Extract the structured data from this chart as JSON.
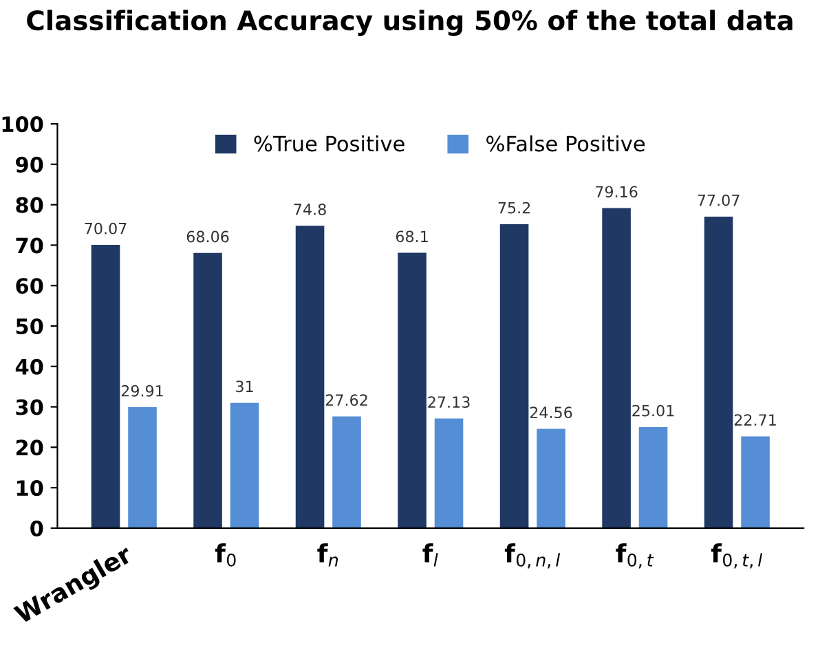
{
  "chart_data": {
    "type": "bar",
    "title": "Classification Accuracy using 50% of the total data",
    "categories": [
      "Wrangler",
      "f$_{0}$",
      "f$_{n}$",
      "f$_{l}$",
      "f$_{0,n,l}$",
      "f$_{0,t}$",
      "f$_{0,t,l}$"
    ],
    "series": [
      {
        "name": "%True Positive",
        "color": "#1f3864",
        "values": [
          70.07,
          68.06,
          74.8,
          68.1,
          75.2,
          79.16,
          77.07
        ]
      },
      {
        "name": "%False Positive",
        "color": "#558ed5",
        "values": [
          29.91,
          31,
          27.62,
          27.13,
          24.56,
          25.01,
          22.71
        ]
      }
    ],
    "ylim": [
      0,
      100
    ],
    "yticks": [
      0,
      10,
      20,
      30,
      40,
      50,
      60,
      70,
      80,
      90,
      100
    ],
    "grid": false,
    "legend": "top",
    "data_labels": true
  }
}
